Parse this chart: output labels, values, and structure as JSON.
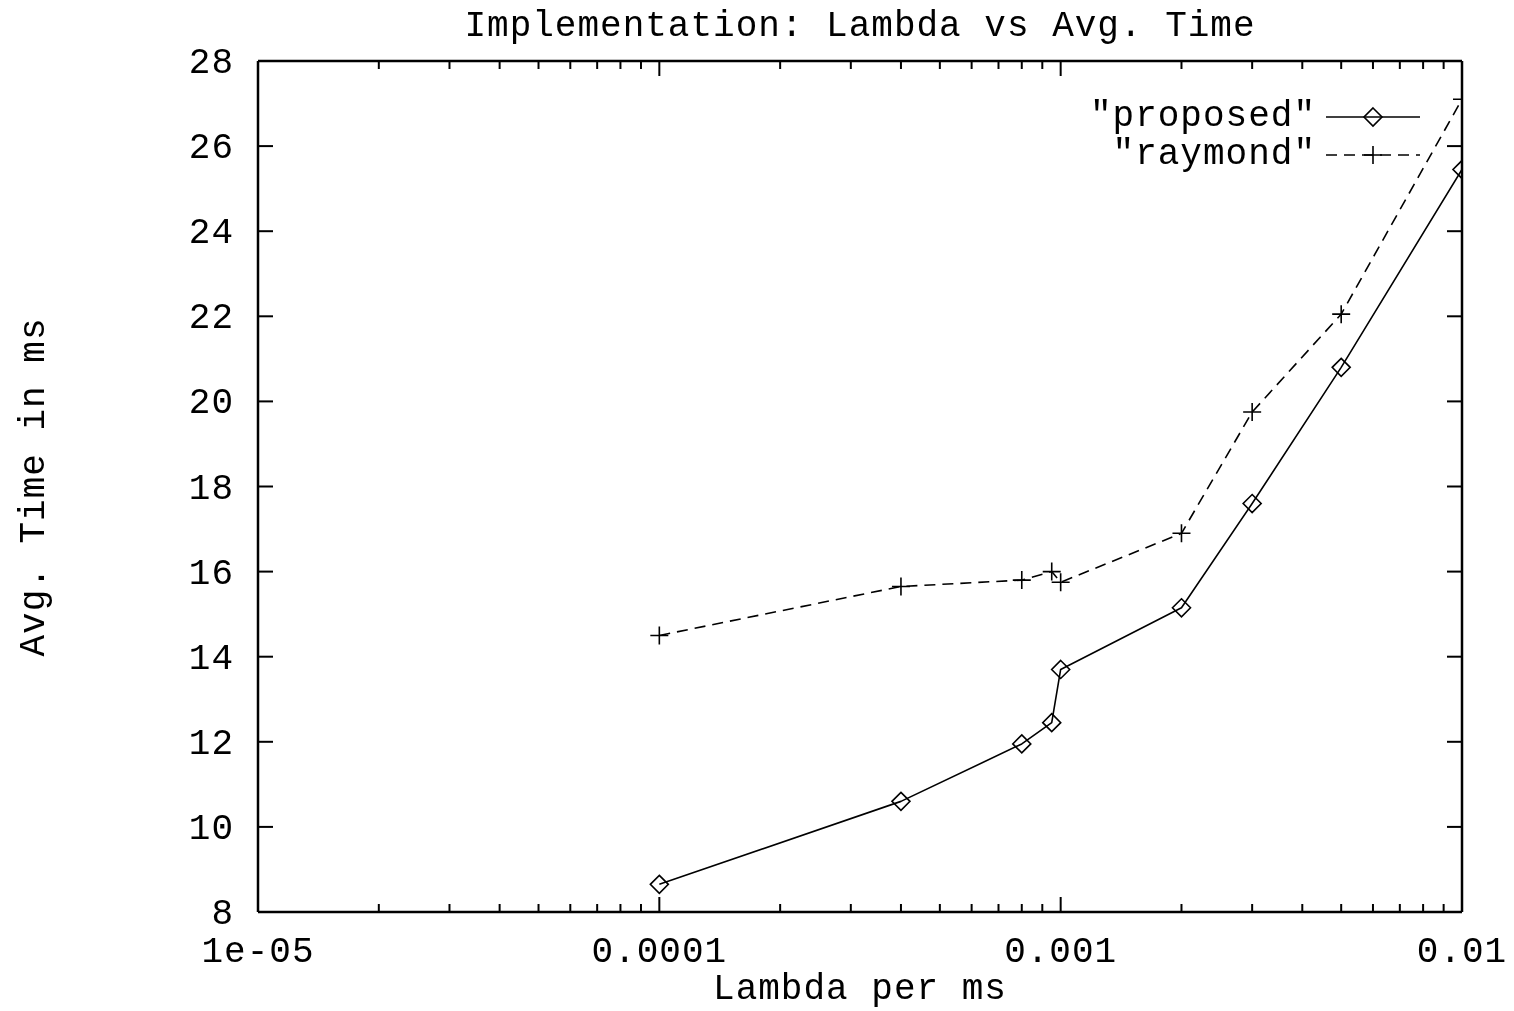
{
  "chart_data": {
    "type": "line",
    "title": "Implementation: Lambda vs Avg. Time",
    "xlabel": "Lambda per ms",
    "ylabel": "Avg. Time in ms",
    "x": [
      0.0001,
      0.0004,
      0.0008,
      0.00095,
      0.001,
      0.002,
      0.003,
      0.005,
      0.01
    ],
    "series": [
      {
        "name": "\"proposed\"",
        "color": "#000000",
        "marker": "diamond",
        "line_style": "solid",
        "values": [
          8.65,
          10.6,
          11.95,
          12.45,
          13.7,
          15.15,
          17.6,
          20.8,
          25.45
        ]
      },
      {
        "name": "\"raymond\"",
        "color": "#000000",
        "marker": "cross",
        "line_style": "dashed",
        "values": [
          14.5,
          15.65,
          15.8,
          16.0,
          15.75,
          16.9,
          19.75,
          22.05,
          27.1
        ]
      }
    ],
    "log": "x",
    "xlim": [
      1e-05,
      0.01
    ],
    "ylim": [
      8,
      28
    ],
    "xticks": [
      {
        "value": 1e-05,
        "label": "1e-05"
      },
      {
        "value": 2e-05,
        "label": null
      },
      {
        "value": 3e-05,
        "label": null
      },
      {
        "value": 4e-05,
        "label": null
      },
      {
        "value": 5e-05,
        "label": null
      },
      {
        "value": 6e-05,
        "label": null
      },
      {
        "value": 7e-05,
        "label": null
      },
      {
        "value": 8e-05,
        "label": null
      },
      {
        "value": 9e-05,
        "label": null
      },
      0.0001,
      {
        "value": 0.0002,
        "label": null
      },
      {
        "value": 0.0003,
        "label": null
      },
      {
        "value": 0.0004,
        "label": null
      },
      {
        "value": 0.0005,
        "label": null
      },
      {
        "value": 0.0006,
        "label": null
      },
      {
        "value": 0.0007,
        "label": null
      },
      {
        "value": 0.0008,
        "label": null
      },
      {
        "value": 0.0009,
        "label": null
      },
      0.001,
      {
        "value": 0.002,
        "label": null
      },
      {
        "value": 0.003,
        "label": null
      },
      {
        "value": 0.004,
        "label": null
      },
      {
        "value": 0.005,
        "label": null
      },
      {
        "value": 0.006,
        "label": null
      },
      {
        "value": 0.007,
        "label": null
      },
      {
        "value": 0.008,
        "label": null
      },
      {
        "value": 0.009,
        "label": null
      },
      0.01
    ],
    "yticks": [
      8,
      10,
      12,
      14,
      16,
      18,
      20,
      22,
      24,
      26,
      28
    ],
    "legend": "top right"
  }
}
